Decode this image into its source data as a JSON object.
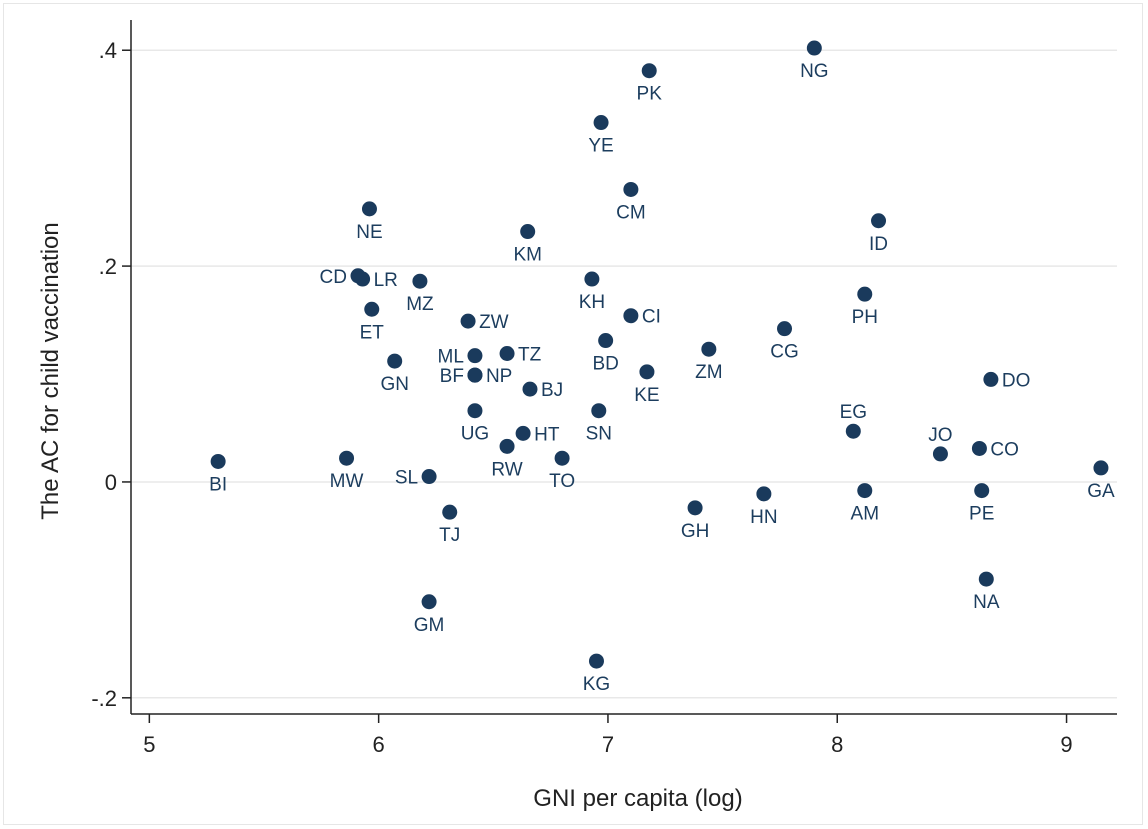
{
  "chart_data": {
    "type": "scatter",
    "title": "",
    "xlabel": "GNI per capita (log)",
    "ylabel": "The AC for child vaccination",
    "xlim": [
      4.92,
      9.22
    ],
    "ylim": [
      -0.215,
      0.428
    ],
    "xticks": [
      {
        "value": 5,
        "label": "5"
      },
      {
        "value": 6,
        "label": "6"
      },
      {
        "value": 7,
        "label": "7"
      },
      {
        "value": 8,
        "label": "8"
      },
      {
        "value": 9,
        "label": "9"
      }
    ],
    "yticks": [
      {
        "value": -0.2,
        "label": "-.2"
      },
      {
        "value": 0,
        "label": "0"
      },
      {
        "value": 0.2,
        "label": ".2"
      },
      {
        "value": 0.4,
        "label": ".4"
      }
    ],
    "grid": "horizontal",
    "marker_color": "#1a3a5c",
    "points": [
      {
        "label": "NG",
        "x": 7.9,
        "y": 0.402,
        "pos": "below"
      },
      {
        "label": "PK",
        "x": 7.18,
        "y": 0.381,
        "pos": "below"
      },
      {
        "label": "YE",
        "x": 6.97,
        "y": 0.333,
        "pos": "below"
      },
      {
        "label": "CM",
        "x": 7.1,
        "y": 0.271,
        "pos": "below"
      },
      {
        "label": "NE",
        "x": 5.96,
        "y": 0.253,
        "pos": "below"
      },
      {
        "label": "ID",
        "x": 8.18,
        "y": 0.242,
        "pos": "below"
      },
      {
        "label": "KM",
        "x": 6.65,
        "y": 0.232,
        "pos": "below"
      },
      {
        "label": "CD",
        "x": 5.91,
        "y": 0.191,
        "pos": "left"
      },
      {
        "label": "LR",
        "x": 5.93,
        "y": 0.188,
        "pos": "right"
      },
      {
        "label": "MZ",
        "x": 6.18,
        "y": 0.186,
        "pos": "below"
      },
      {
        "label": "KH",
        "x": 6.93,
        "y": 0.188,
        "pos": "below"
      },
      {
        "label": "PH",
        "x": 8.12,
        "y": 0.174,
        "pos": "below"
      },
      {
        "label": "ET",
        "x": 5.97,
        "y": 0.16,
        "pos": "below"
      },
      {
        "label": "CI",
        "x": 7.1,
        "y": 0.154,
        "pos": "right"
      },
      {
        "label": "ZW",
        "x": 6.39,
        "y": 0.149,
        "pos": "right"
      },
      {
        "label": "CG",
        "x": 7.77,
        "y": 0.142,
        "pos": "below"
      },
      {
        "label": "BD",
        "x": 6.99,
        "y": 0.131,
        "pos": "below"
      },
      {
        "label": "ZM",
        "x": 7.44,
        "y": 0.123,
        "pos": "below"
      },
      {
        "label": "TZ",
        "x": 6.56,
        "y": 0.119,
        "pos": "right"
      },
      {
        "label": "ML",
        "x": 6.42,
        "y": 0.117,
        "pos": "left"
      },
      {
        "label": "GN",
        "x": 6.07,
        "y": 0.112,
        "pos": "below"
      },
      {
        "label": "KE",
        "x": 7.17,
        "y": 0.102,
        "pos": "below"
      },
      {
        "label": "NP",
        "x": 6.42,
        "y": 0.099,
        "pos": "right"
      },
      {
        "label": "BF",
        "x": 6.42,
        "y": 0.099,
        "pos": "left"
      },
      {
        "label": "DO",
        "x": 8.67,
        "y": 0.095,
        "pos": "right"
      },
      {
        "label": "BJ",
        "x": 6.66,
        "y": 0.086,
        "pos": "right"
      },
      {
        "label": "UG",
        "x": 6.42,
        "y": 0.066,
        "pos": "below"
      },
      {
        "label": "SN",
        "x": 6.96,
        "y": 0.066,
        "pos": "below"
      },
      {
        "label": "EG",
        "x": 8.07,
        "y": 0.047,
        "pos": "above"
      },
      {
        "label": "HT",
        "x": 6.63,
        "y": 0.045,
        "pos": "right"
      },
      {
        "label": "RW",
        "x": 6.56,
        "y": 0.033,
        "pos": "below"
      },
      {
        "label": "CO",
        "x": 8.62,
        "y": 0.031,
        "pos": "right"
      },
      {
        "label": "JO",
        "x": 8.45,
        "y": 0.026,
        "pos": "above"
      },
      {
        "label": "TO",
        "x": 6.8,
        "y": 0.022,
        "pos": "below"
      },
      {
        "label": "MW",
        "x": 5.86,
        "y": 0.022,
        "pos": "below"
      },
      {
        "label": "BI",
        "x": 5.3,
        "y": 0.019,
        "pos": "below"
      },
      {
        "label": "GA",
        "x": 9.15,
        "y": 0.013,
        "pos": "below"
      },
      {
        "label": "SL",
        "x": 6.22,
        "y": 0.005,
        "pos": "left"
      },
      {
        "label": "AM",
        "x": 8.12,
        "y": -0.008,
        "pos": "below"
      },
      {
        "label": "PE",
        "x": 8.63,
        "y": -0.008,
        "pos": "below"
      },
      {
        "label": "HN",
        "x": 7.68,
        "y": -0.011,
        "pos": "below"
      },
      {
        "label": "GH",
        "x": 7.38,
        "y": -0.024,
        "pos": "below"
      },
      {
        "label": "TJ",
        "x": 6.31,
        "y": -0.028,
        "pos": "below"
      },
      {
        "label": "NA",
        "x": 8.65,
        "y": -0.09,
        "pos": "below"
      },
      {
        "label": "GM",
        "x": 6.22,
        "y": -0.111,
        "pos": "below"
      },
      {
        "label": "KG",
        "x": 6.95,
        "y": -0.166,
        "pos": "below"
      }
    ]
  }
}
